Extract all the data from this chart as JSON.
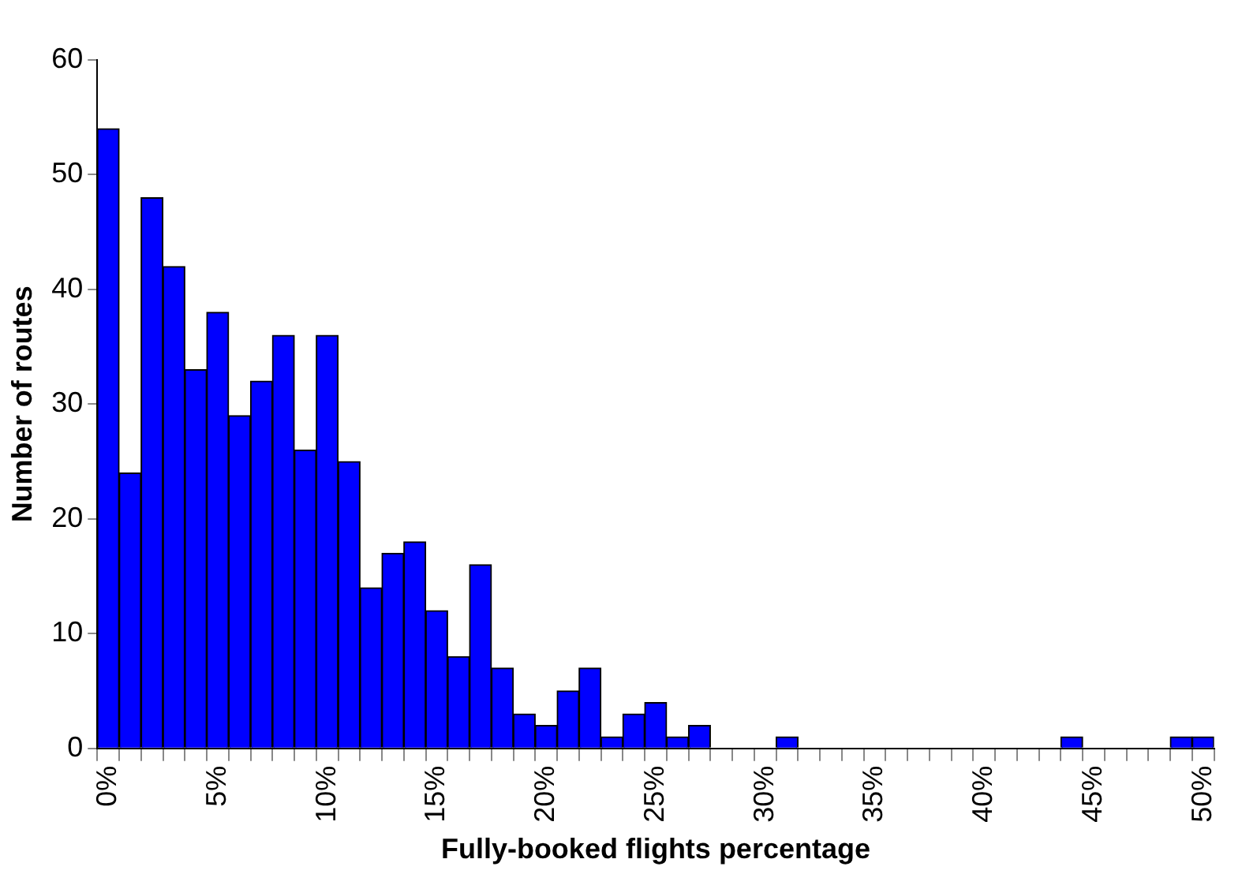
{
  "chart_data": {
    "type": "bar",
    "xlabel": "Fully-booked flights percentage",
    "ylabel": "Number of routes",
    "categories": [
      "0%",
      null,
      null,
      null,
      null,
      "5%",
      null,
      null,
      null,
      null,
      "10%",
      null,
      null,
      null,
      null,
      "15%",
      null,
      null,
      null,
      null,
      "20%",
      null,
      null,
      null,
      null,
      "25%",
      null,
      null,
      null,
      null,
      "30%",
      null,
      null,
      null,
      null,
      "35%",
      null,
      null,
      null,
      null,
      "40%",
      null,
      null,
      null,
      null,
      "45%",
      null,
      null,
      null,
      null,
      "50%"
    ],
    "values": [
      54,
      24,
      48,
      42,
      33,
      38,
      29,
      32,
      36,
      26,
      36,
      25,
      14,
      17,
      18,
      12,
      8,
      16,
      7,
      3,
      2,
      5,
      7,
      1,
      3,
      4,
      1,
      2,
      0,
      0,
      0,
      1,
      0,
      0,
      0,
      0,
      0,
      0,
      0,
      0,
      0,
      0,
      0,
      0,
      1,
      0,
      0,
      0,
      0,
      1,
      1
    ],
    "color": "#0000ff",
    "ylim": [
      0,
      60
    ],
    "yticks": [
      0,
      10,
      20,
      30,
      40,
      50,
      60
    ],
    "grid": false,
    "legend": false
  }
}
